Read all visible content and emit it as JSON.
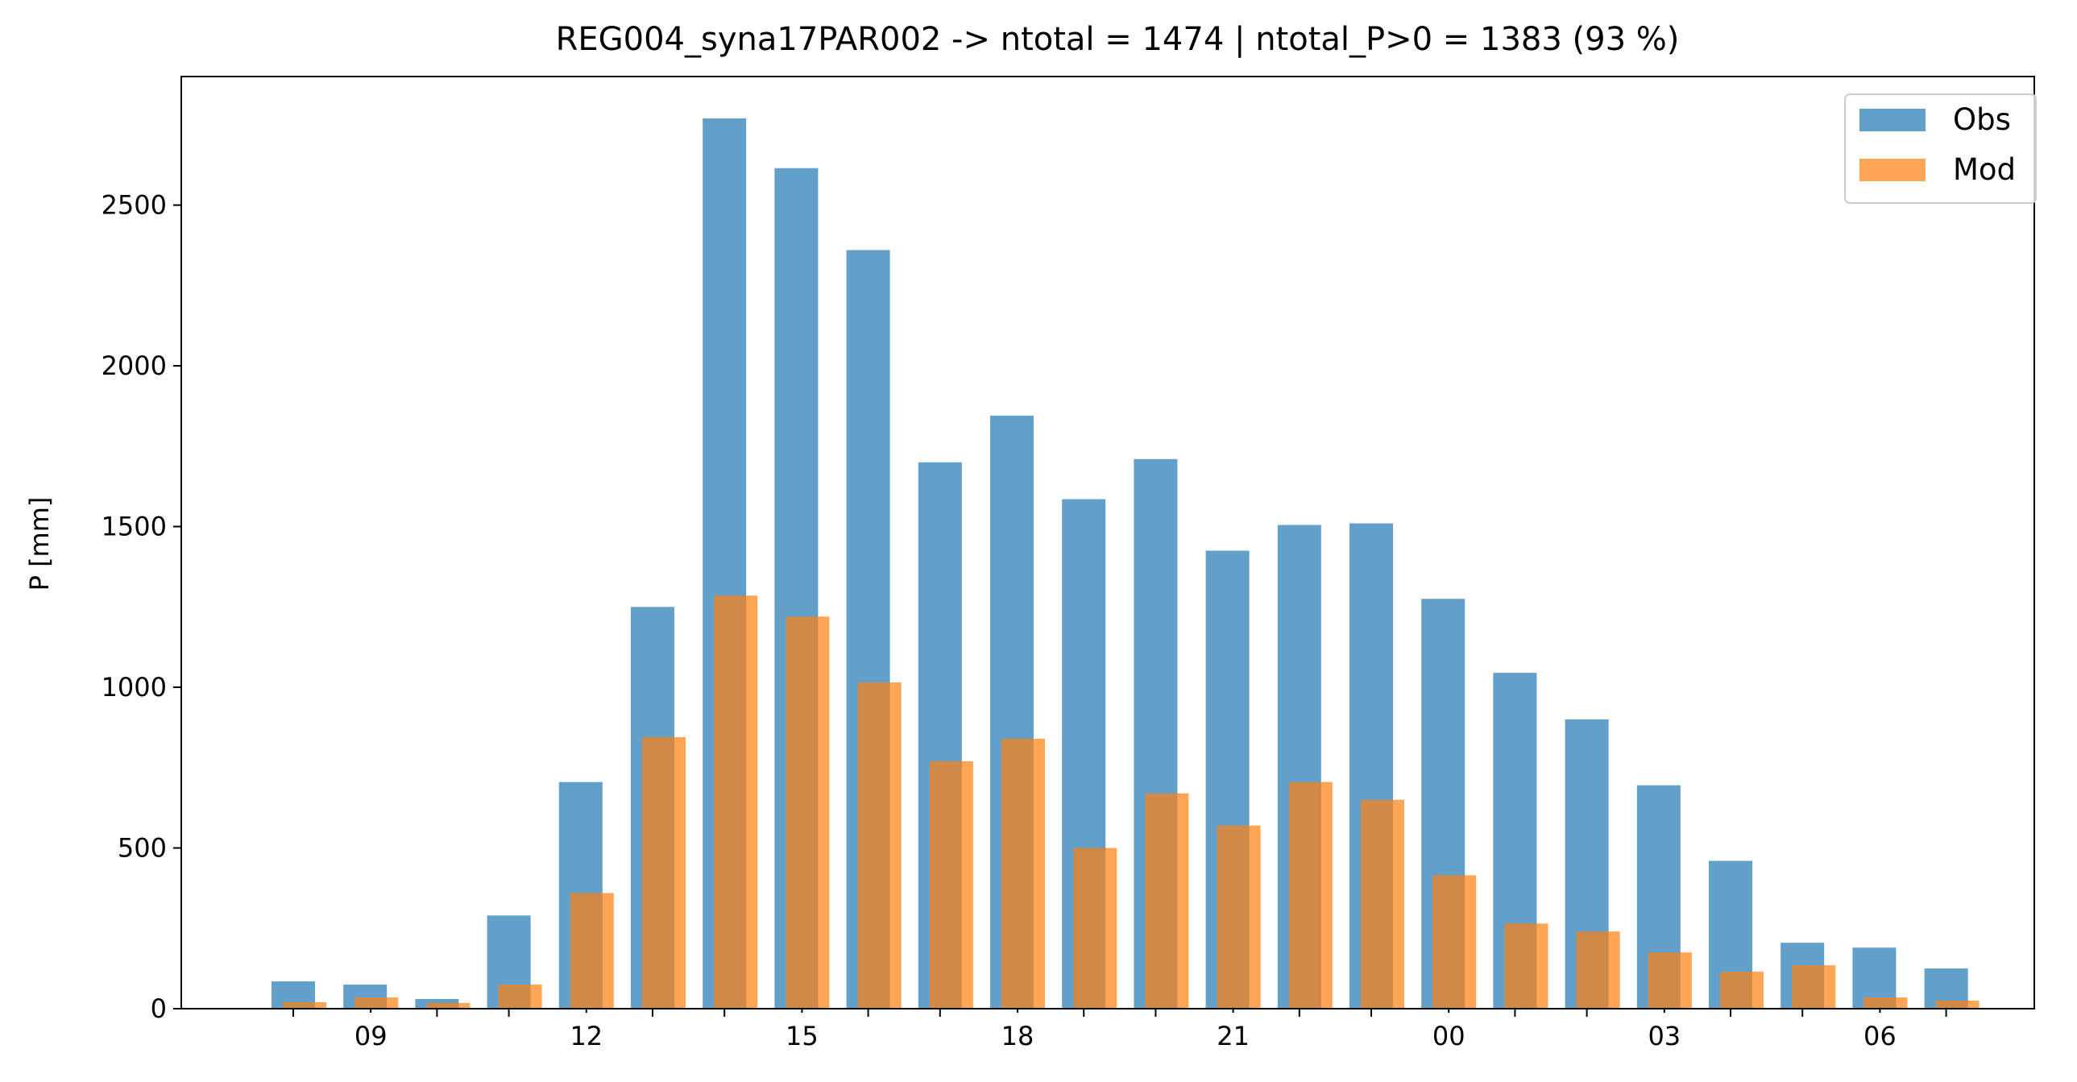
{
  "chart_data": {
    "type": "bar",
    "title": "REG004_syna17PAR002 -> ntotal = 1474 | ntotal_P>0 = 1383 (93 %)",
    "xlabel": "",
    "ylabel": "P [mm]",
    "ylim": [
      0,
      2900
    ],
    "yticks": [
      0,
      500,
      1000,
      1500,
      2000,
      2500
    ],
    "x_hours": [
      8,
      9,
      10,
      11,
      12,
      13,
      14,
      15,
      16,
      17,
      18,
      19,
      20,
      21,
      22,
      23,
      0,
      1,
      2,
      3,
      4,
      5,
      6,
      7
    ],
    "xtick_labels": [
      "09",
      "12",
      "15",
      "18",
      "21",
      "00",
      "03",
      "06"
    ],
    "xtick_label_hours": [
      9,
      12,
      15,
      18,
      21,
      24,
      27,
      30
    ],
    "minor_tick_hours": [
      8,
      10,
      11,
      13,
      14,
      16,
      17,
      19,
      20,
      22,
      23,
      25,
      26,
      28,
      29,
      31
    ],
    "series": [
      {
        "name": "Obs",
        "color": "#1f77b4",
        "values": [
          85,
          75,
          30,
          290,
          705,
          1250,
          2770,
          2615,
          2360,
          1700,
          1845,
          1585,
          1710,
          1425,
          1505,
          1510,
          1275,
          1045,
          900,
          695,
          460,
          205,
          190,
          125
        ]
      },
      {
        "name": "Mod",
        "color": "#ff7f0e",
        "values": [
          20,
          35,
          18,
          75,
          360,
          845,
          1285,
          1220,
          1015,
          770,
          840,
          500,
          670,
          570,
          705,
          650,
          415,
          265,
          240,
          175,
          115,
          135,
          35,
          25
        ]
      }
    ],
    "legend_position": "top-right",
    "grid": false
  }
}
